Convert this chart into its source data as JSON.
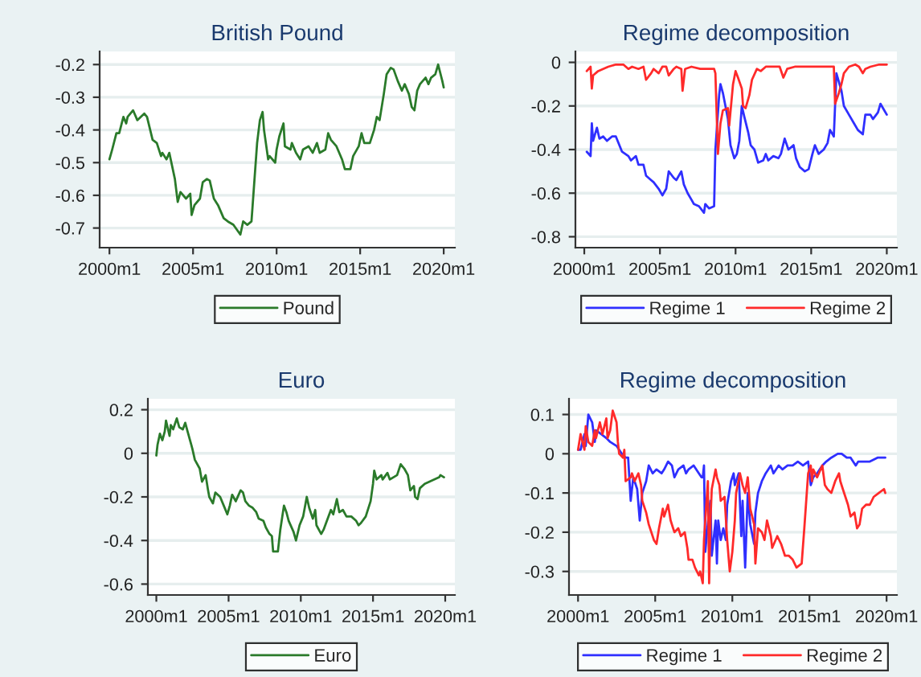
{
  "chart_data": [
    {
      "type": "line",
      "title": "British Pound",
      "xlim": [
        "1999-06",
        "2020-09"
      ],
      "xticks": [
        {
          "value": "2000-01",
          "label": "2000m1"
        },
        {
          "value": "2005-01",
          "label": "2005m1"
        },
        {
          "value": "2010-01",
          "label": "2010m1"
        },
        {
          "value": "2015-01",
          "label": "2015m1"
        },
        {
          "value": "2020-01",
          "label": "2020m1"
        }
      ],
      "ylim": [
        -0.76,
        -0.16
      ],
      "yticks": [
        -0.7,
        -0.6,
        -0.5,
        -0.4,
        -0.3,
        -0.2
      ],
      "grid": "y",
      "legend": "bottom",
      "series": [
        {
          "name": "Pound",
          "color": "#2a7a2a",
          "x": [
            "2000-01",
            "2000-03",
            "2000-06",
            "2000-08",
            "2000-11",
            "2001-01",
            "2001-02",
            "2001-06",
            "2001-09",
            "2002-02",
            "2002-04",
            "2002-08",
            "2002-11",
            "2003-02",
            "2003-03",
            "2003-06",
            "2003-08",
            "2003-12",
            "2004-02",
            "2004-04",
            "2004-08",
            "2004-11",
            "2004-12",
            "2005-02",
            "2005-06",
            "2005-08",
            "2005-11",
            "2006-01",
            "2006-04",
            "2006-07",
            "2006-11",
            "2007-02",
            "2007-06",
            "2007-11",
            "2008-01",
            "2008-04",
            "2008-07",
            "2008-11",
            "2009-01",
            "2009-03",
            "2009-04",
            "2009-07",
            "2009-08",
            "2009-12",
            "2010-01",
            "2010-03",
            "2010-06",
            "2010-07",
            "2010-11",
            "2010-12",
            "2011-03",
            "2011-06",
            "2011-08",
            "2011-12",
            "2012-03",
            "2012-06",
            "2012-08",
            "2012-12",
            "2013-02",
            "2013-04",
            "2013-08",
            "2013-12",
            "2014-02",
            "2014-06",
            "2014-08",
            "2014-12",
            "2015-02",
            "2015-04",
            "2015-08",
            "2015-11",
            "2016-01",
            "2016-03",
            "2016-06",
            "2016-08",
            "2016-11",
            "2017-01",
            "2017-04",
            "2017-07",
            "2017-09",
            "2017-12",
            "2018-02",
            "2018-04",
            "2018-06",
            "2018-08",
            "2018-12",
            "2019-02",
            "2019-04",
            "2019-07",
            "2019-09",
            "2019-12",
            "2020-01"
          ],
          "values": [
            -0.49,
            -0.46,
            -0.41,
            -0.41,
            -0.36,
            -0.38,
            -0.36,
            -0.34,
            -0.37,
            -0.35,
            -0.36,
            -0.43,
            -0.44,
            -0.48,
            -0.47,
            -0.49,
            -0.47,
            -0.55,
            -0.62,
            -0.59,
            -0.61,
            -0.595,
            -0.66,
            -0.63,
            -0.61,
            -0.56,
            -0.55,
            -0.555,
            -0.61,
            -0.63,
            -0.67,
            -0.68,
            -0.69,
            -0.72,
            -0.68,
            -0.69,
            -0.68,
            -0.44,
            -0.37,
            -0.345,
            -0.4,
            -0.49,
            -0.48,
            -0.5,
            -0.46,
            -0.42,
            -0.38,
            -0.45,
            -0.46,
            -0.44,
            -0.47,
            -0.49,
            -0.46,
            -0.45,
            -0.47,
            -0.44,
            -0.47,
            -0.46,
            -0.41,
            -0.43,
            -0.45,
            -0.49,
            -0.52,
            -0.52,
            -0.48,
            -0.45,
            -0.41,
            -0.44,
            -0.44,
            -0.4,
            -0.36,
            -0.37,
            -0.29,
            -0.23,
            -0.21,
            -0.215,
            -0.25,
            -0.28,
            -0.26,
            -0.29,
            -0.33,
            -0.34,
            -0.28,
            -0.26,
            -0.24,
            -0.26,
            -0.24,
            -0.23,
            -0.2,
            -0.25,
            -0.27
          ]
        }
      ]
    },
    {
      "type": "line",
      "title": "Regime decomposition",
      "xlim": [
        "1999-06",
        "2020-09"
      ],
      "xticks": [
        {
          "value": "2000-01",
          "label": "2000m1"
        },
        {
          "value": "2005-01",
          "label": "2005m1"
        },
        {
          "value": "2010-01",
          "label": "2010m1"
        },
        {
          "value": "2015-01",
          "label": "2015m1"
        },
        {
          "value": "2020-01",
          "label": "2020m1"
        }
      ],
      "ylim": [
        -0.85,
        0.05
      ],
      "yticks": [
        -0.8,
        -0.6,
        -0.4,
        -0.2,
        0
      ],
      "grid": "y",
      "legend": "bottom",
      "series": [
        {
          "name": "Regime 1",
          "color": "#2f2fff",
          "x": [
            "2000-03",
            "2000-06",
            "2000-07",
            "2000-08",
            "2000-11",
            "2001-01",
            "2001-04",
            "2001-07",
            "2001-11",
            "2002-02",
            "2002-07",
            "2002-12",
            "2003-02",
            "2003-06",
            "2003-08",
            "2003-12",
            "2004-02",
            "2004-06",
            "2004-08",
            "2004-12",
            "2005-03",
            "2005-06",
            "2005-08",
            "2005-12",
            "2006-02",
            "2006-06",
            "2006-08",
            "2006-11",
            "2007-02",
            "2007-04",
            "2007-08",
            "2007-12",
            "2008-01",
            "2008-04",
            "2008-08",
            "2008-09",
            "2008-12",
            "2009-01",
            "2009-03",
            "2009-07",
            "2009-09",
            "2009-12",
            "2010-02",
            "2010-04",
            "2010-06",
            "2010-08",
            "2010-11",
            "2011-01",
            "2011-04",
            "2011-07",
            "2011-11",
            "2012-01",
            "2012-03",
            "2012-07",
            "2012-11",
            "2013-01",
            "2013-04",
            "2013-07",
            "2013-11",
            "2014-01",
            "2014-04",
            "2014-08",
            "2014-11",
            "2015-02",
            "2015-04",
            "2015-07",
            "2015-11",
            "2016-02",
            "2016-04",
            "2016-07",
            "2016-09",
            "2017-01",
            "2017-03",
            "2017-07",
            "2017-11",
            "2018-02",
            "2018-06",
            "2018-08",
            "2018-12",
            "2019-02",
            "2019-06",
            "2019-08",
            "2019-11",
            "2020-01"
          ],
          "values": [
            -0.41,
            -0.43,
            -0.28,
            -0.36,
            -0.3,
            -0.35,
            -0.34,
            -0.36,
            -0.34,
            -0.34,
            -0.41,
            -0.43,
            -0.45,
            -0.43,
            -0.47,
            -0.47,
            -0.52,
            -0.54,
            -0.55,
            -0.58,
            -0.61,
            -0.58,
            -0.5,
            -0.53,
            -0.54,
            -0.5,
            -0.56,
            -0.6,
            -0.63,
            -0.65,
            -0.66,
            -0.69,
            -0.65,
            -0.67,
            -0.66,
            -0.4,
            -0.15,
            -0.1,
            -0.14,
            -0.26,
            -0.38,
            -0.44,
            -0.42,
            -0.36,
            -0.2,
            -0.25,
            -0.32,
            -0.38,
            -0.4,
            -0.46,
            -0.45,
            -0.42,
            -0.45,
            -0.43,
            -0.44,
            -0.42,
            -0.35,
            -0.4,
            -0.38,
            -0.44,
            -0.48,
            -0.5,
            -0.49,
            -0.42,
            -0.38,
            -0.42,
            -0.4,
            -0.37,
            -0.31,
            -0.34,
            -0.05,
            -0.13,
            -0.2,
            -0.24,
            -0.28,
            -0.31,
            -0.33,
            -0.24,
            -0.24,
            -0.26,
            -0.23,
            -0.19,
            -0.22,
            -0.24
          ]
        },
        {
          "name": "Regime 2",
          "color": "#ff2a2a",
          "x": [
            "2000-03",
            "2000-06",
            "2000-07",
            "2000-08",
            "2000-12",
            "2001-04",
            "2001-08",
            "2002-02",
            "2002-08",
            "2002-12",
            "2003-03",
            "2003-08",
            "2003-12",
            "2004-02",
            "2004-06",
            "2004-08",
            "2004-12",
            "2005-03",
            "2005-06",
            "2005-08",
            "2005-12",
            "2006-02",
            "2006-06",
            "2006-07",
            "2006-09",
            "2007-02",
            "2007-09",
            "2008-03",
            "2008-08",
            "2008-09",
            "2008-11",
            "2009-01",
            "2009-03",
            "2009-07",
            "2009-08",
            "2009-11",
            "2010-01",
            "2010-03",
            "2010-06",
            "2010-07",
            "2010-09",
            "2010-12",
            "2011-02",
            "2011-06",
            "2011-09",
            "2012-01",
            "2012-04",
            "2012-12",
            "2013-03",
            "2013-06",
            "2013-12",
            "2014-08",
            "2015-06",
            "2016-02",
            "2016-07",
            "2016-08",
            "2016-11",
            "2017-01",
            "2017-03",
            "2017-07",
            "2017-12",
            "2018-03",
            "2018-06",
            "2018-08",
            "2018-12",
            "2019-07",
            "2020-01"
          ],
          "values": [
            -0.04,
            -0.02,
            -0.12,
            -0.06,
            -0.04,
            -0.03,
            -0.02,
            -0.01,
            -0.01,
            -0.03,
            -0.02,
            -0.03,
            -0.02,
            -0.08,
            -0.05,
            -0.03,
            -0.05,
            -0.02,
            -0.02,
            -0.06,
            -0.03,
            -0.02,
            -0.03,
            -0.13,
            -0.03,
            -0.02,
            -0.03,
            -0.03,
            -0.03,
            -0.05,
            -0.42,
            -0.28,
            -0.22,
            -0.21,
            -0.29,
            -0.1,
            -0.04,
            -0.07,
            -0.12,
            -0.2,
            -0.21,
            -0.15,
            -0.08,
            -0.03,
            -0.04,
            -0.02,
            -0.02,
            -0.02,
            -0.07,
            -0.03,
            -0.02,
            -0.02,
            -0.02,
            -0.02,
            -0.02,
            -0.19,
            -0.14,
            -0.1,
            -0.05,
            -0.02,
            -0.01,
            -0.02,
            -0.05,
            -0.03,
            -0.02,
            -0.01,
            -0.01
          ]
        }
      ]
    },
    {
      "type": "line",
      "title": "Euro",
      "xlim": [
        "1999-06",
        "2020-09"
      ],
      "xticks": [
        {
          "value": "2000-01",
          "label": "2000m1"
        },
        {
          "value": "2005-01",
          "label": "2005m1"
        },
        {
          "value": "2010-01",
          "label": "2010m1"
        },
        {
          "value": "2015-01",
          "label": "2015m1"
        },
        {
          "value": "2020-01",
          "label": "2020m1"
        }
      ],
      "ylim": [
        -0.65,
        0.25
      ],
      "yticks": [
        -0.6,
        -0.4,
        -0.2,
        0,
        0.2
      ],
      "grid": "y",
      "legend": "bottom",
      "series": [
        {
          "name": "Euro",
          "color": "#2a7a2a",
          "x": [
            "2000-01",
            "2000-02",
            "2000-04",
            "2000-06",
            "2000-08",
            "2000-09",
            "2000-12",
            "2001-01",
            "2001-03",
            "2001-06",
            "2001-08",
            "2001-11",
            "2002-01",
            "2002-03",
            "2002-06",
            "2002-07",
            "2002-09",
            "2003-01",
            "2003-03",
            "2003-06",
            "2003-08",
            "2003-09",
            "2003-12",
            "2004-02",
            "2004-06",
            "2004-09",
            "2004-12",
            "2005-02",
            "2005-04",
            "2005-07",
            "2005-11",
            "2006-01",
            "2006-03",
            "2006-06",
            "2006-09",
            "2006-12",
            "2007-02",
            "2007-06",
            "2007-08",
            "2007-11",
            "2008-01",
            "2008-02",
            "2008-06",
            "2008-08",
            "2008-11",
            "2009-01",
            "2009-03",
            "2009-07",
            "2009-09",
            "2009-12",
            "2010-03",
            "2010-06",
            "2010-08",
            "2010-11",
            "2011-01",
            "2011-02",
            "2011-06",
            "2011-08",
            "2011-12",
            "2012-02",
            "2012-04",
            "2012-07",
            "2012-09",
            "2012-12",
            "2013-03",
            "2013-07",
            "2013-11",
            "2014-01",
            "2014-03",
            "2014-07",
            "2014-11",
            "2015-01",
            "2015-02",
            "2015-04",
            "2015-08",
            "2015-09",
            "2016-01",
            "2016-03",
            "2016-06",
            "2016-09",
            "2016-12",
            "2017-03",
            "2017-06",
            "2017-08",
            "2017-11",
            "2017-12",
            "2018-02",
            "2018-04",
            "2018-08",
            "2018-12",
            "2019-04",
            "2019-08",
            "2019-09",
            "2019-12"
          ],
          "values": [
            -0.01,
            0.04,
            0.09,
            0.06,
            0.1,
            0.15,
            0.08,
            0.13,
            0.11,
            0.16,
            0.12,
            0.11,
            0.14,
            0.1,
            0.04,
            0.02,
            -0.03,
            -0.07,
            -0.13,
            -0.1,
            -0.17,
            -0.2,
            -0.23,
            -0.18,
            -0.2,
            -0.24,
            -0.28,
            -0.24,
            -0.19,
            -0.22,
            -0.17,
            -0.18,
            -0.22,
            -0.24,
            -0.25,
            -0.27,
            -0.3,
            -0.31,
            -0.34,
            -0.37,
            -0.38,
            -0.45,
            -0.45,
            -0.35,
            -0.24,
            -0.27,
            -0.31,
            -0.36,
            -0.4,
            -0.33,
            -0.29,
            -0.2,
            -0.25,
            -0.3,
            -0.26,
            -0.33,
            -0.37,
            -0.35,
            -0.29,
            -0.26,
            -0.28,
            -0.21,
            -0.27,
            -0.26,
            -0.29,
            -0.29,
            -0.31,
            -0.33,
            -0.32,
            -0.29,
            -0.22,
            -0.14,
            -0.08,
            -0.12,
            -0.1,
            -0.12,
            -0.09,
            -0.12,
            -0.11,
            -0.1,
            -0.05,
            -0.07,
            -0.1,
            -0.17,
            -0.15,
            -0.2,
            -0.21,
            -0.16,
            -0.14,
            -0.13,
            -0.12,
            -0.11,
            -0.1,
            -0.11
          ]
        }
      ]
    },
    {
      "type": "line",
      "title": "Regime decomposition",
      "xlim": [
        "1999-06",
        "2020-09"
      ],
      "xticks": [
        {
          "value": "2000-01",
          "label": "2000m1"
        },
        {
          "value": "2005-01",
          "label": "2005m1"
        },
        {
          "value": "2010-01",
          "label": "2010m1"
        },
        {
          "value": "2015-01",
          "label": "2015m1"
        },
        {
          "value": "2020-01",
          "label": "2020m1"
        }
      ],
      "ylim": [
        -0.36,
        0.14
      ],
      "yticks": [
        -0.3,
        -0.2,
        -0.1,
        0,
        0.1
      ],
      "grid": "y",
      "legend": "bottom",
      "series": [
        {
          "name": "Regime 1",
          "color": "#2f2fff",
          "x": [
            "2000-01",
            "2000-03",
            "2000-06",
            "2000-07",
            "2000-09",
            "2000-12",
            "2001-02",
            "2001-03",
            "2001-07",
            "2001-11",
            "2002-02",
            "2002-07",
            "2002-11",
            "2003-02",
            "2003-04",
            "2003-06",
            "2003-08",
            "2003-11",
            "2004-01",
            "2004-03",
            "2004-06",
            "2004-08",
            "2004-11",
            "2005-02",
            "2005-06",
            "2005-08",
            "2005-11",
            "2006-02",
            "2006-04",
            "2006-07",
            "2006-11",
            "2007-01",
            "2007-03",
            "2007-07",
            "2007-11",
            "2008-01",
            "2008-02",
            "2008-03",
            "2008-04",
            "2008-07",
            "2008-08",
            "2008-09",
            "2008-12",
            "2009-01",
            "2009-02",
            "2009-04",
            "2009-06",
            "2009-08",
            "2009-09",
            "2009-12",
            "2010-02",
            "2010-03",
            "2010-06",
            "2010-08",
            "2010-09",
            "2010-11",
            "2011-01",
            "2011-03",
            "2011-06",
            "2011-07",
            "2011-09",
            "2011-12",
            "2012-03",
            "2012-07",
            "2012-09",
            "2013-01",
            "2013-04",
            "2013-08",
            "2013-12",
            "2014-04",
            "2014-08",
            "2014-12",
            "2015-02",
            "2015-04",
            "2015-07",
            "2015-11",
            "2016-02",
            "2016-06",
            "2016-11",
            "2017-02",
            "2017-06",
            "2017-09",
            "2018-01",
            "2018-03",
            "2018-08",
            "2018-12",
            "2019-06",
            "2019-12"
          ],
          "values": [
            0.01,
            0.01,
            0.05,
            0.02,
            0.1,
            0.08,
            0.03,
            0.06,
            0.05,
            0.04,
            0.03,
            0.02,
            0.0,
            -0.01,
            -0.01,
            -0.12,
            -0.06,
            -0.09,
            -0.17,
            -0.1,
            -0.07,
            -0.03,
            -0.05,
            -0.04,
            -0.05,
            -0.04,
            -0.02,
            -0.03,
            -0.06,
            -0.04,
            -0.03,
            -0.05,
            -0.04,
            -0.03,
            -0.05,
            -0.06,
            -0.06,
            -0.03,
            -0.25,
            -0.14,
            -0.12,
            -0.26,
            -0.17,
            -0.28,
            -0.17,
            -0.22,
            -0.19,
            -0.22,
            -0.13,
            -0.07,
            -0.05,
            -0.08,
            -0.05,
            -0.21,
            -0.12,
            -0.29,
            -0.1,
            -0.18,
            -0.23,
            -0.15,
            -0.1,
            -0.07,
            -0.05,
            -0.03,
            -0.05,
            -0.03,
            -0.04,
            -0.03,
            -0.03,
            -0.02,
            -0.03,
            -0.02,
            -0.08,
            -0.06,
            -0.05,
            -0.03,
            -0.02,
            -0.01,
            0.0,
            0.0,
            -0.01,
            -0.01,
            -0.03,
            -0.02,
            -0.02,
            -0.02,
            -0.01,
            -0.01
          ]
        },
        {
          "name": "Regime 2",
          "color": "#ff2a2a",
          "x": [
            "2000-01",
            "2000-03",
            "2000-06",
            "2000-07",
            "2000-09",
            "2000-12",
            "2001-02",
            "2001-03",
            "2001-06",
            "2001-08",
            "2001-11",
            "2001-12",
            "2002-02",
            "2002-04",
            "2002-07",
            "2002-08",
            "2002-09",
            "2002-12",
            "2003-01",
            "2003-02",
            "2003-06",
            "2003-07",
            "2003-09",
            "2003-12",
            "2004-02",
            "2004-03",
            "2004-06",
            "2004-08",
            "2004-11",
            "2004-12",
            "2005-02",
            "2005-04",
            "2005-07",
            "2005-08",
            "2005-11",
            "2006-01",
            "2006-03",
            "2006-04",
            "2006-07",
            "2006-09",
            "2006-12",
            "2007-02",
            "2007-03",
            "2007-06",
            "2007-08",
            "2007-11",
            "2007-12",
            "2008-02",
            "2008-03",
            "2008-06",
            "2008-07",
            "2008-08",
            "2008-09",
            "2008-12",
            "2009-01",
            "2009-03",
            "2009-04",
            "2009-07",
            "2009-09",
            "2009-11",
            "2010-01",
            "2010-03",
            "2010-04",
            "2010-07",
            "2010-09",
            "2010-11",
            "2011-01",
            "2011-03",
            "2011-06",
            "2011-07",
            "2011-09",
            "2011-12",
            "2012-02",
            "2012-04",
            "2012-07",
            "2012-08",
            "2012-12",
            "2013-03",
            "2013-06",
            "2013-09",
            "2013-12",
            "2014-03",
            "2014-07",
            "2014-09",
            "2014-12",
            "2015-02",
            "2015-03",
            "2015-04",
            "2015-07",
            "2015-11",
            "2016-01",
            "2016-03",
            "2016-06",
            "2016-09",
            "2016-12",
            "2017-01",
            "2017-03",
            "2017-07",
            "2017-09",
            "2017-12",
            "2018-02",
            "2018-04",
            "2018-06",
            "2018-09",
            "2018-12",
            "2019-03",
            "2019-07",
            "2019-11",
            "2019-12"
          ],
          "values": [
            0.01,
            0.05,
            0.01,
            0.07,
            0.03,
            0.02,
            0.06,
            0.04,
            0.08,
            0.05,
            0.09,
            0.04,
            0.06,
            0.11,
            0.08,
            0.03,
            0.0,
            -0.01,
            0.01,
            -0.07,
            -0.06,
            -0.05,
            -0.07,
            -0.05,
            -0.08,
            -0.12,
            -0.15,
            -0.18,
            -0.21,
            -0.22,
            -0.23,
            -0.19,
            -0.14,
            -0.16,
            -0.13,
            -0.17,
            -0.19,
            -0.2,
            -0.19,
            -0.21,
            -0.2,
            -0.24,
            -0.27,
            -0.27,
            -0.29,
            -0.31,
            -0.3,
            -0.33,
            -0.22,
            -0.07,
            -0.33,
            -0.17,
            -0.09,
            -0.04,
            -0.06,
            -0.08,
            -0.12,
            -0.11,
            -0.22,
            -0.3,
            -0.25,
            -0.17,
            -0.1,
            -0.05,
            -0.08,
            -0.1,
            -0.06,
            -0.14,
            -0.18,
            -0.28,
            -0.19,
            -0.2,
            -0.22,
            -0.17,
            -0.21,
            -0.24,
            -0.21,
            -0.23,
            -0.26,
            -0.26,
            -0.27,
            -0.29,
            -0.28,
            -0.19,
            -0.05,
            -0.03,
            -0.07,
            -0.04,
            -0.06,
            -0.03,
            -0.08,
            -0.09,
            -0.1,
            -0.07,
            -0.05,
            -0.07,
            -0.09,
            -0.13,
            -0.16,
            -0.15,
            -0.19,
            -0.18,
            -0.14,
            -0.13,
            -0.13,
            -0.11,
            -0.1,
            -0.09,
            -0.1
          ]
        }
      ]
    }
  ]
}
